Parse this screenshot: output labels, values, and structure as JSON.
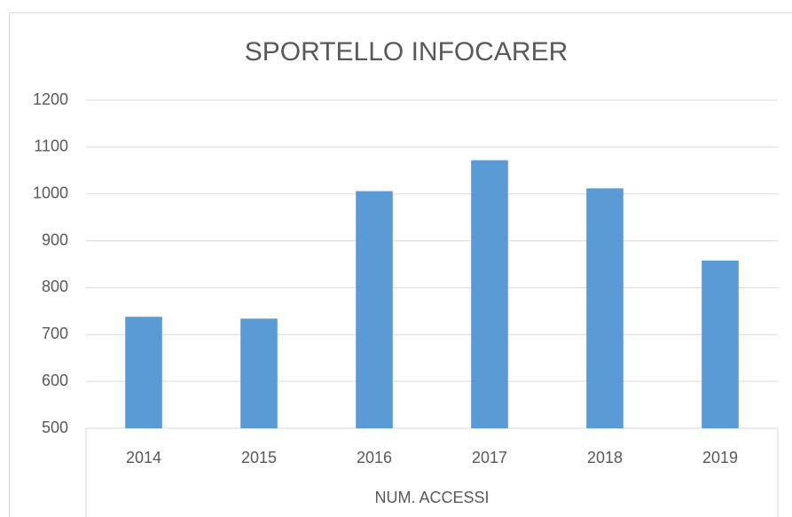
{
  "chart_data": {
    "type": "bar",
    "title": "SPORTELLO INFOCARER",
    "x_label": "NUM. ACCESSI",
    "categories": [
      "2014",
      "2015",
      "2016",
      "2017",
      "2018",
      "2019"
    ],
    "values": [
      738,
      734,
      1006,
      1072,
      1012,
      858
    ],
    "color": "#5b9bd5",
    "ylim": [
      500,
      1200
    ],
    "yticks": [
      500,
      600,
      700,
      800,
      900,
      1000,
      1100,
      1200
    ],
    "grid": true
  }
}
